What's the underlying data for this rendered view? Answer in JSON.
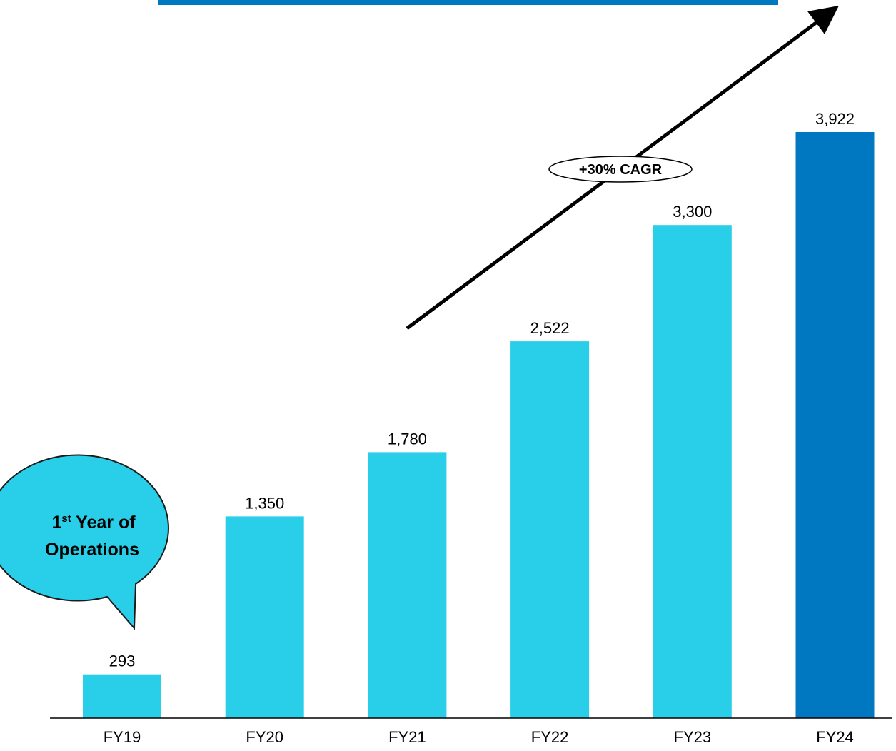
{
  "chart_data": {
    "type": "bar",
    "categories": [
      "FY19",
      "FY20",
      "FY21",
      "FY22",
      "FY23",
      "FY24"
    ],
    "values": [
      293,
      1350,
      1780,
      2522,
      3300,
      3922
    ],
    "value_labels": [
      "293",
      "1,350",
      "1,780",
      "2,522",
      "3,300",
      "3,922"
    ],
    "ylim": [
      0,
      4400
    ],
    "grid": false,
    "title": "",
    "xlabel": "",
    "ylabel": ""
  },
  "annotations": {
    "growth_label": "+30% CAGR",
    "callout_line1_main": "1",
    "callout_line1_sup": "st",
    "callout_line1_rest": " Year of",
    "callout_line2": "Operations"
  },
  "colors": {
    "bar": "#29CFE8",
    "highlight_bar": "#0077C1",
    "title_bar": "#0077C1",
    "callout_fill": "#29CFE8",
    "axis": "#000000",
    "arrow": "#000000"
  }
}
